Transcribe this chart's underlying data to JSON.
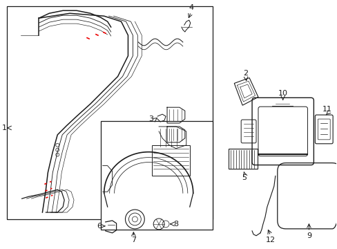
{
  "background_color": "#ffffff",
  "line_color": "#1a1a1a",
  "red_color": "#ee0000",
  "fig_width": 4.89,
  "fig_height": 3.6,
  "dpi": 100
}
